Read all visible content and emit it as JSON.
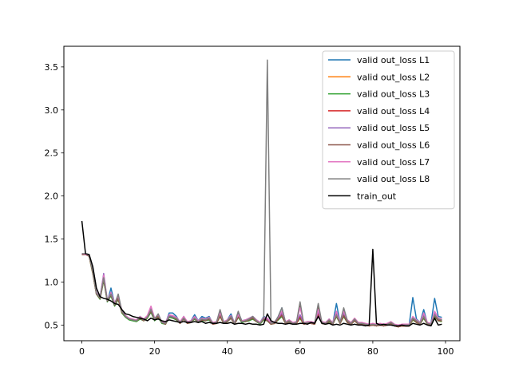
{
  "chart_data": {
    "type": "line",
    "title": "",
    "xlabel": "",
    "ylabel": "",
    "xlim": [
      -4.95,
      103.95
    ],
    "ylim": [
      0.318,
      3.74
    ],
    "xticks": [
      0,
      20,
      40,
      60,
      80,
      100
    ],
    "yticks": [
      0.5,
      1.0,
      1.5,
      2.0,
      2.5,
      3.0,
      3.5
    ],
    "xtick_labels": [
      "0",
      "20",
      "40",
      "60",
      "80",
      "100"
    ],
    "ytick_labels": [
      "0.5",
      "1.0",
      "1.5",
      "2.0",
      "2.5",
      "3.0",
      "3.5"
    ],
    "legend_position": "top-right",
    "grid": false,
    "series": [
      {
        "name": "valid out_loss L1",
        "color": "#1f77b4",
        "values": [
          1.33,
          1.32,
          1.31,
          1.13,
          0.88,
          0.82,
          1.06,
          0.77,
          0.93,
          0.75,
          0.84,
          0.66,
          0.6,
          0.58,
          0.56,
          0.55,
          0.6,
          0.56,
          0.6,
          0.7,
          0.57,
          0.6,
          0.54,
          0.52,
          0.64,
          0.64,
          0.6,
          0.53,
          0.6,
          0.53,
          0.55,
          0.62,
          0.55,
          0.6,
          0.58,
          0.6,
          0.52,
          0.53,
          0.65,
          0.53,
          0.56,
          0.63,
          0.52,
          0.64,
          0.55,
          0.56,
          0.58,
          0.6,
          0.56,
          0.53,
          0.6,
          0.58,
          0.53,
          0.53,
          0.6,
          0.7,
          0.53,
          0.56,
          0.52,
          0.53,
          0.58,
          0.52,
          0.53,
          0.53,
          0.52,
          0.67,
          0.53,
          0.52,
          0.57,
          0.52,
          0.75,
          0.53,
          0.69,
          0.55,
          0.52,
          0.57,
          0.52,
          0.52,
          0.51,
          0.5,
          0.51,
          0.5,
          0.51,
          0.5,
          0.51,
          0.53,
          0.5,
          0.49,
          0.5,
          0.5,
          0.5,
          0.82,
          0.57,
          0.53,
          0.68,
          0.52,
          0.52,
          0.81,
          0.6,
          0.59
        ]
      },
      {
        "name": "valid out_loss L2",
        "color": "#ff7f0e",
        "values": [
          1.32,
          1.32,
          1.3,
          1.1,
          0.86,
          0.81,
          1.03,
          0.78,
          0.85,
          0.73,
          0.8,
          0.65,
          0.6,
          0.57,
          0.56,
          0.55,
          0.58,
          0.55,
          0.58,
          0.66,
          0.56,
          0.6,
          0.53,
          0.51,
          0.6,
          0.58,
          0.57,
          0.52,
          0.57,
          0.52,
          0.53,
          0.57,
          0.53,
          0.56,
          0.55,
          0.57,
          0.51,
          0.52,
          0.6,
          0.52,
          0.54,
          0.58,
          0.51,
          0.6,
          0.54,
          0.54,
          0.56,
          0.57,
          0.54,
          0.52,
          0.56,
          0.55,
          0.51,
          0.52,
          0.57,
          0.6,
          0.52,
          0.54,
          0.51,
          0.52,
          0.58,
          0.51,
          0.52,
          0.52,
          0.51,
          0.62,
          0.52,
          0.51,
          0.54,
          0.51,
          0.6,
          0.52,
          0.6,
          0.53,
          0.51,
          0.55,
          0.51,
          0.51,
          0.5,
          0.49,
          0.5,
          0.49,
          0.5,
          0.49,
          0.5,
          0.52,
          0.49,
          0.48,
          0.49,
          0.49,
          0.49,
          0.56,
          0.53,
          0.51,
          0.58,
          0.51,
          0.5,
          0.6,
          0.55,
          0.54
        ]
      },
      {
        "name": "valid out_loss L3",
        "color": "#2ca02c",
        "values": [
          1.32,
          1.32,
          1.3,
          1.1,
          0.86,
          0.8,
          1.02,
          0.77,
          0.84,
          0.72,
          0.8,
          0.64,
          0.59,
          0.56,
          0.55,
          0.54,
          0.57,
          0.55,
          0.58,
          0.65,
          0.55,
          0.59,
          0.52,
          0.51,
          0.59,
          0.58,
          0.56,
          0.52,
          0.57,
          0.52,
          0.53,
          0.57,
          0.53,
          0.55,
          0.55,
          0.56,
          0.51,
          0.52,
          0.6,
          0.52,
          0.54,
          0.58,
          0.51,
          0.59,
          0.53,
          0.54,
          0.55,
          0.57,
          0.54,
          0.51,
          0.56,
          0.55,
          0.51,
          0.52,
          0.56,
          0.6,
          0.52,
          0.54,
          0.51,
          0.52,
          0.58,
          0.51,
          0.52,
          0.52,
          0.51,
          0.62,
          0.52,
          0.51,
          0.54,
          0.51,
          0.6,
          0.52,
          0.6,
          0.53,
          0.51,
          0.55,
          0.51,
          0.51,
          0.5,
          0.49,
          0.5,
          0.49,
          0.5,
          0.49,
          0.5,
          0.52,
          0.49,
          0.48,
          0.49,
          0.49,
          0.49,
          0.56,
          0.53,
          0.51,
          0.58,
          0.51,
          0.5,
          0.6,
          0.55,
          0.54
        ]
      },
      {
        "name": "valid out_loss L4",
        "color": "#d62728",
        "values": [
          1.32,
          1.32,
          1.31,
          1.11,
          0.87,
          0.81,
          1.04,
          0.78,
          0.86,
          0.74,
          0.81,
          0.65,
          0.6,
          0.57,
          0.56,
          0.55,
          0.58,
          0.56,
          0.59,
          0.67,
          0.56,
          0.6,
          0.53,
          0.52,
          0.6,
          0.59,
          0.57,
          0.52,
          0.58,
          0.52,
          0.54,
          0.58,
          0.53,
          0.56,
          0.56,
          0.57,
          0.51,
          0.52,
          0.61,
          0.52,
          0.55,
          0.59,
          0.51,
          0.6,
          0.54,
          0.55,
          0.56,
          0.58,
          0.55,
          0.52,
          0.57,
          0.56,
          0.52,
          0.52,
          0.57,
          0.62,
          0.52,
          0.55,
          0.51,
          0.52,
          0.6,
          0.51,
          0.52,
          0.52,
          0.51,
          0.64,
          0.52,
          0.51,
          0.55,
          0.51,
          0.62,
          0.52,
          0.62,
          0.54,
          0.51,
          0.56,
          0.51,
          0.51,
          0.5,
          0.49,
          0.5,
          0.49,
          0.5,
          0.49,
          0.5,
          0.52,
          0.49,
          0.48,
          0.49,
          0.49,
          0.49,
          0.57,
          0.54,
          0.51,
          0.6,
          0.51,
          0.5,
          0.62,
          0.56,
          0.55
        ]
      },
      {
        "name": "valid out_loss L5",
        "color": "#9467bd",
        "values": [
          1.33,
          1.32,
          1.31,
          1.12,
          0.87,
          0.82,
          1.1,
          0.78,
          0.87,
          0.75,
          0.83,
          0.66,
          0.6,
          0.57,
          0.56,
          0.55,
          0.59,
          0.56,
          0.6,
          0.69,
          0.57,
          0.61,
          0.53,
          0.52,
          0.61,
          0.6,
          0.58,
          0.53,
          0.59,
          0.53,
          0.54,
          0.59,
          0.54,
          0.57,
          0.56,
          0.58,
          0.52,
          0.53,
          0.63,
          0.53,
          0.55,
          0.6,
          0.52,
          0.61,
          0.54,
          0.55,
          0.57,
          0.59,
          0.55,
          0.52,
          0.58,
          0.57,
          0.52,
          0.53,
          0.58,
          0.64,
          0.53,
          0.55,
          0.52,
          0.53,
          0.62,
          0.52,
          0.53,
          0.53,
          0.52,
          0.66,
          0.53,
          0.52,
          0.56,
          0.52,
          0.64,
          0.53,
          0.64,
          0.55,
          0.52,
          0.57,
          0.52,
          0.52,
          0.51,
          0.5,
          0.51,
          0.5,
          0.51,
          0.5,
          0.51,
          0.53,
          0.5,
          0.49,
          0.5,
          0.5,
          0.5,
          0.58,
          0.55,
          0.52,
          0.62,
          0.52,
          0.51,
          0.64,
          0.57,
          0.56
        ]
      },
      {
        "name": "valid out_loss L6",
        "color": "#8c564b",
        "values": [
          1.32,
          1.32,
          1.3,
          1.11,
          0.86,
          0.81,
          1.03,
          0.78,
          0.85,
          0.73,
          0.81,
          0.65,
          0.6,
          0.57,
          0.56,
          0.55,
          0.58,
          0.55,
          0.59,
          0.66,
          0.56,
          0.6,
          0.53,
          0.51,
          0.6,
          0.59,
          0.57,
          0.52,
          0.57,
          0.52,
          0.53,
          0.58,
          0.53,
          0.56,
          0.55,
          0.57,
          0.51,
          0.52,
          0.61,
          0.52,
          0.54,
          0.58,
          0.51,
          0.6,
          0.54,
          0.54,
          0.56,
          0.58,
          0.54,
          0.52,
          0.57,
          0.55,
          0.51,
          0.52,
          0.57,
          0.61,
          0.52,
          0.54,
          0.51,
          0.52,
          0.74,
          0.51,
          0.52,
          0.52,
          0.51,
          0.72,
          0.52,
          0.51,
          0.55,
          0.51,
          0.61,
          0.52,
          0.61,
          0.53,
          0.51,
          0.55,
          0.51,
          0.51,
          0.5,
          0.49,
          0.5,
          0.49,
          0.5,
          0.49,
          0.5,
          0.52,
          0.49,
          0.48,
          0.49,
          0.49,
          0.49,
          0.57,
          0.53,
          0.51,
          0.59,
          0.51,
          0.5,
          0.61,
          0.55,
          0.55
        ]
      },
      {
        "name": "valid out_loss L7",
        "color": "#e377c2",
        "values": [
          1.33,
          1.32,
          1.31,
          1.13,
          0.88,
          0.82,
          1.08,
          0.79,
          0.88,
          0.76,
          0.84,
          0.67,
          0.61,
          0.58,
          0.57,
          0.56,
          0.6,
          0.57,
          0.61,
          0.72,
          0.58,
          0.62,
          0.54,
          0.53,
          0.62,
          0.61,
          0.59,
          0.54,
          0.6,
          0.54,
          0.55,
          0.6,
          0.55,
          0.58,
          0.57,
          0.59,
          0.53,
          0.54,
          0.64,
          0.54,
          0.56,
          0.61,
          0.53,
          0.62,
          0.55,
          0.56,
          0.58,
          0.6,
          0.56,
          0.53,
          0.59,
          0.58,
          0.53,
          0.54,
          0.59,
          0.66,
          0.54,
          0.56,
          0.53,
          0.54,
          0.7,
          0.53,
          0.54,
          0.54,
          0.53,
          0.68,
          0.54,
          0.53,
          0.57,
          0.53,
          0.66,
          0.54,
          0.66,
          0.56,
          0.53,
          0.58,
          0.53,
          0.53,
          0.52,
          0.51,
          0.52,
          0.51,
          0.52,
          0.51,
          0.52,
          0.54,
          0.51,
          0.5,
          0.51,
          0.51,
          0.51,
          0.6,
          0.56,
          0.53,
          0.64,
          0.53,
          0.52,
          0.66,
          0.58,
          0.57
        ]
      },
      {
        "name": "valid out_loss L8",
        "color": "#7f7f7f",
        "values": [
          1.33,
          1.33,
          1.31,
          1.12,
          0.87,
          0.82,
          1.05,
          0.79,
          0.86,
          0.74,
          0.86,
          0.66,
          0.6,
          0.57,
          0.56,
          0.55,
          0.59,
          0.56,
          0.59,
          0.68,
          0.57,
          0.63,
          0.53,
          0.52,
          0.6,
          0.59,
          0.58,
          0.53,
          0.58,
          0.53,
          0.54,
          0.58,
          0.54,
          0.57,
          0.56,
          0.58,
          0.52,
          0.53,
          0.68,
          0.53,
          0.55,
          0.6,
          0.52,
          0.66,
          0.54,
          0.55,
          0.57,
          0.6,
          0.55,
          0.52,
          0.58,
          3.58,
          0.52,
          0.53,
          0.6,
          0.7,
          0.53,
          0.55,
          0.52,
          0.53,
          0.77,
          0.52,
          0.53,
          0.53,
          0.52,
          0.75,
          0.53,
          0.52,
          0.56,
          0.52,
          0.62,
          0.53,
          0.7,
          0.55,
          0.52,
          0.57,
          0.52,
          0.52,
          0.51,
          0.5,
          0.51,
          0.5,
          0.51,
          0.5,
          0.51,
          0.53,
          0.5,
          0.49,
          0.5,
          0.5,
          0.5,
          0.58,
          0.55,
          0.52,
          0.6,
          0.52,
          0.51,
          0.62,
          0.57,
          0.56
        ]
      },
      {
        "name": "train_out",
        "color": "#000000",
        "values": [
          1.71,
          1.33,
          1.32,
          1.18,
          0.93,
          0.83,
          0.81,
          0.8,
          0.78,
          0.75,
          0.74,
          0.68,
          0.63,
          0.62,
          0.6,
          0.59,
          0.58,
          0.57,
          0.55,
          0.58,
          0.56,
          0.57,
          0.55,
          0.54,
          0.56,
          0.55,
          0.54,
          0.53,
          0.54,
          0.53,
          0.53,
          0.54,
          0.53,
          0.54,
          0.52,
          0.53,
          0.52,
          0.52,
          0.53,
          0.52,
          0.52,
          0.53,
          0.51,
          0.52,
          0.52,
          0.51,
          0.52,
          0.51,
          0.51,
          0.5,
          0.51,
          0.63,
          0.55,
          0.53,
          0.52,
          0.52,
          0.51,
          0.52,
          0.51,
          0.51,
          0.52,
          0.52,
          0.51,
          0.53,
          0.52,
          0.6,
          0.52,
          0.51,
          0.52,
          0.5,
          0.51,
          0.5,
          0.52,
          0.51,
          0.5,
          0.51,
          0.5,
          0.5,
          0.49,
          0.5,
          1.38,
          0.52,
          0.5,
          0.51,
          0.5,
          0.5,
          0.49,
          0.49,
          0.5,
          0.49,
          0.49,
          0.52,
          0.51,
          0.5,
          0.52,
          0.5,
          0.49,
          0.58,
          0.5,
          0.51
        ]
      }
    ]
  }
}
